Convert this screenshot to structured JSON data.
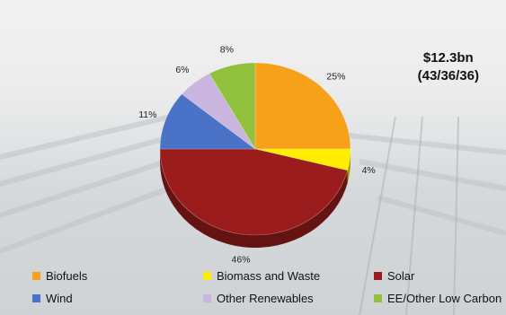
{
  "header": {
    "total": "$12.3bn",
    "breakdown": "(43/36/36)"
  },
  "chart_data": {
    "type": "pie",
    "categories": [
      "Biofuels",
      "Biomass and Waste",
      "Solar",
      "Wind",
      "Other Renewables",
      "EE/Other Low Carbon"
    ],
    "values": [
      25,
      4,
      46,
      11,
      6,
      8
    ],
    "labels": [
      "25%",
      "4%",
      "46%",
      "11%",
      "6%",
      "8%"
    ],
    "colors": [
      "#f7a11a",
      "#ffee00",
      "#9b1c1c",
      "#4a73c7",
      "#c9b5dd",
      "#92c13e"
    ],
    "title": "",
    "legend_position": "bottom"
  }
}
